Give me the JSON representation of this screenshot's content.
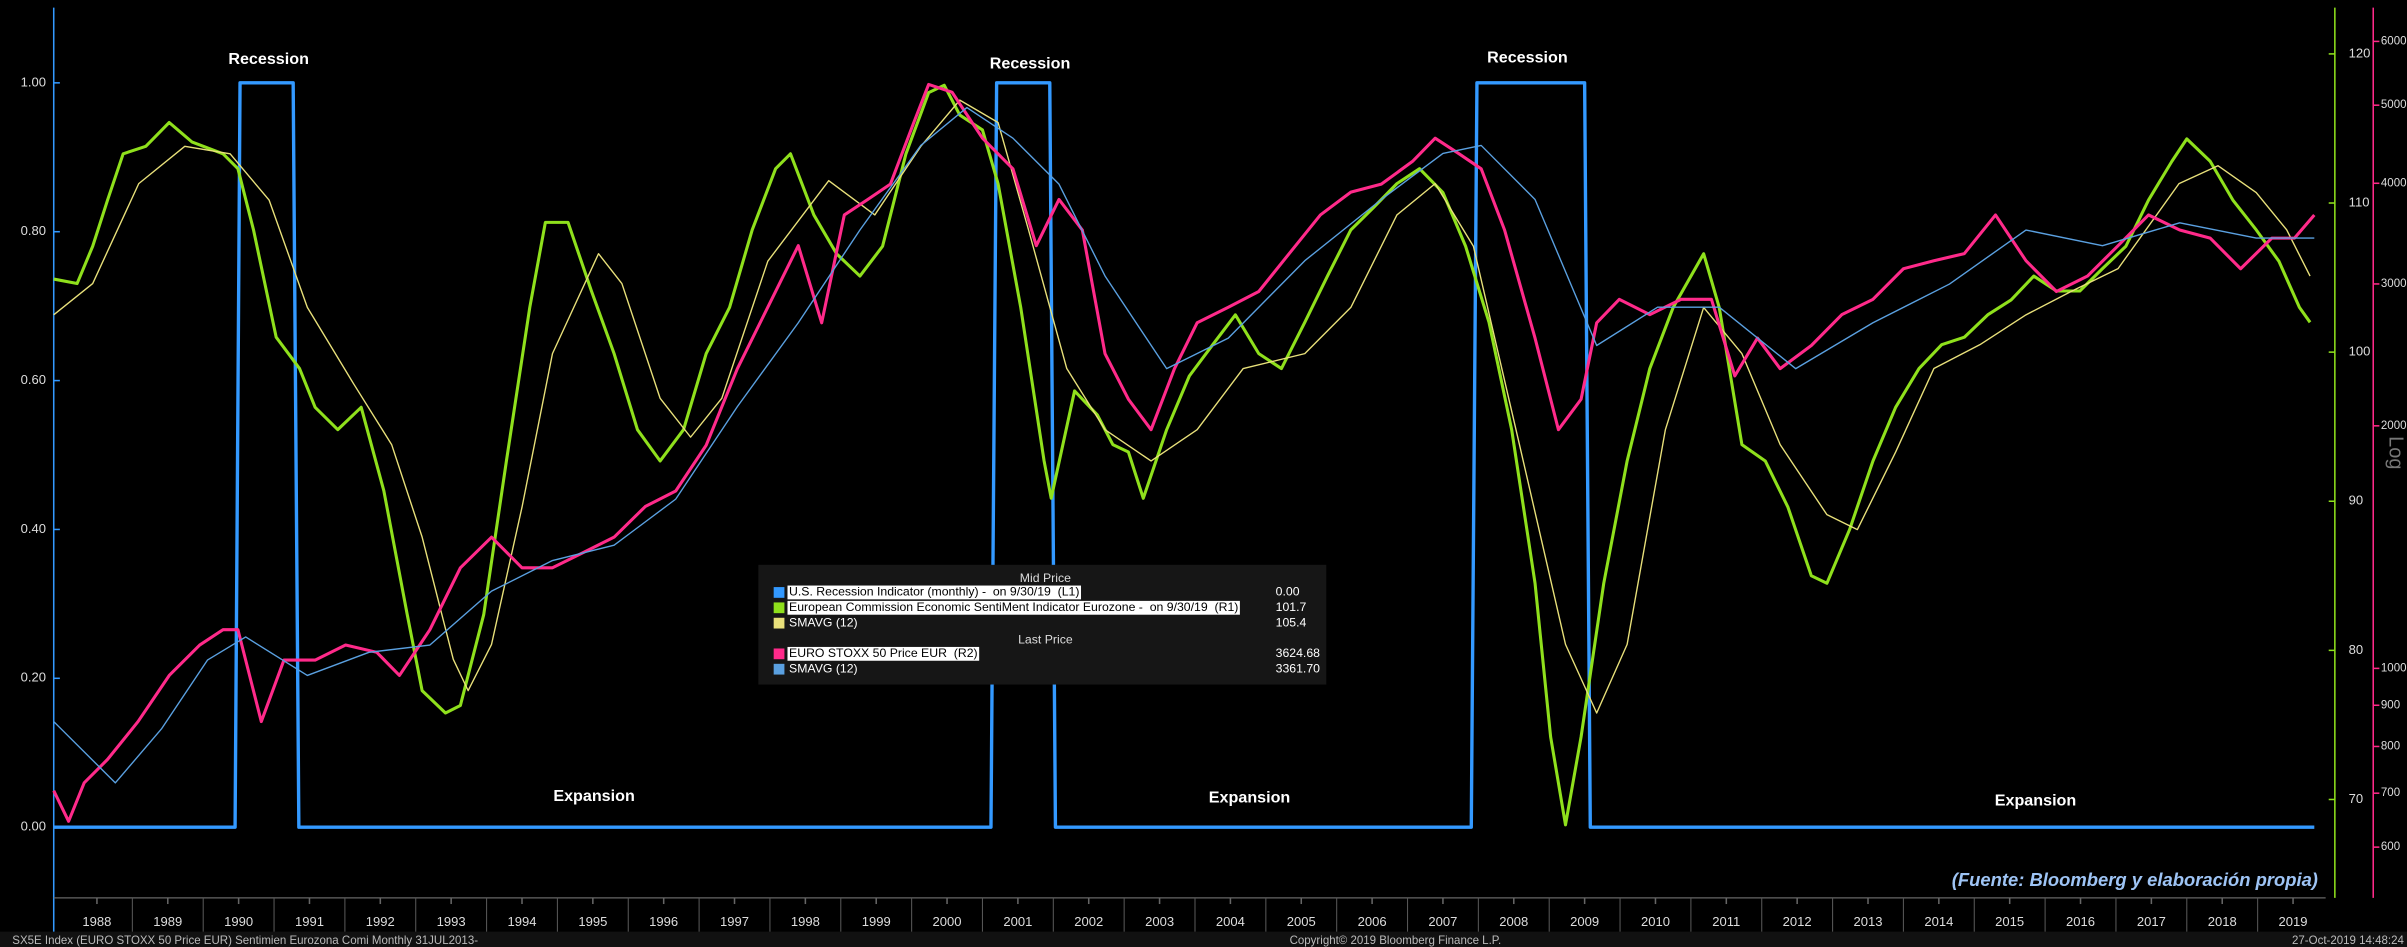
{
  "chart_data": {
    "type": "line",
    "annotations": [
      "Recession",
      "Recession",
      "Recession",
      "Expansion",
      "Expansion",
      "Expansion"
    ],
    "source": "(Fuente: Bloomberg y elaboración propia)",
    "footer": [
      "SX5E Index (EURO STOXX 50 Price EUR) Sentimien Eurozona Comi  Monthly 31JUL2013-",
      "Copyright© 2019 Bloomberg Finance L.P.",
      "27-Oct-2019 14:48:24"
    ],
    "y3_label": "Log",
    "legend": {
      "headers": [
        "Mid Price",
        "Last Price"
      ],
      "values": [
        "0.00",
        "101.7",
        "105.4",
        "3624.68",
        "3361.70"
      ]
    },
    "xlim": [
      1987.89,
      2019.96
    ],
    "xticks": [
      {
        "value": 1988.5,
        "label": "1988"
      },
      {
        "value": 1989.5,
        "label": "1989"
      },
      {
        "value": 1990.5,
        "label": "1990"
      },
      {
        "value": 1991.5,
        "label": "1991"
      },
      {
        "value": 1992.5,
        "label": "1992"
      },
      {
        "value": 1993.5,
        "label": "1993"
      },
      {
        "value": 1994.5,
        "label": "1994"
      },
      {
        "value": 1995.5,
        "label": "1995"
      },
      {
        "value": 1996.5,
        "label": "1996"
      },
      {
        "value": 1997.5,
        "label": "1997"
      },
      {
        "value": 1998.5,
        "label": "1998"
      },
      {
        "value": 1999.5,
        "label": "1999"
      },
      {
        "value": 2000.5,
        "label": "2000"
      },
      {
        "value": 2001.5,
        "label": "2001"
      },
      {
        "value": 2002.5,
        "label": "2002"
      },
      {
        "value": 2003.5,
        "label": "2003"
      },
      {
        "value": 2004.5,
        "label": "2004"
      },
      {
        "value": 2005.5,
        "label": "2005"
      },
      {
        "value": 2006.5,
        "label": "2006"
      },
      {
        "value": 2007.5,
        "label": "2007"
      },
      {
        "value": 2008.5,
        "label": "2008"
      },
      {
        "value": 2009.5,
        "label": "2009"
      },
      {
        "value": 2010.5,
        "label": "2010"
      },
      {
        "value": 2011.5,
        "label": "2011"
      },
      {
        "value": 2012.5,
        "label": "2012"
      },
      {
        "value": 2013.5,
        "label": "2013"
      },
      {
        "value": 2014.5,
        "label": "2014"
      },
      {
        "value": 2015.5,
        "label": "2015"
      },
      {
        "value": 2016.5,
        "label": "2016"
      },
      {
        "value": 2017.5,
        "label": "2017"
      },
      {
        "value": 2018.5,
        "label": "2018"
      },
      {
        "value": 2019.5,
        "label": "2019"
      }
    ],
    "ylim": [
      -0.095,
      1.101
    ],
    "yticks": [
      {
        "value": 0,
        "label": "0.00"
      },
      {
        "value": 0.2,
        "label": "0.20"
      },
      {
        "value": 0.4,
        "label": "0.40"
      },
      {
        "value": 0.6,
        "label": "0.60"
      },
      {
        "value": 0.8,
        "label": "0.80"
      },
      {
        "value": 1,
        "label": "1.00"
      }
    ],
    "y2lim": [
      63.4,
      123.1
    ],
    "y2ticks": [
      70,
      80,
      90,
      100,
      110,
      120
    ],
    "y2color": "#8fe01c",
    "y3lim": [
      519,
      6607
    ],
    "y3log": true,
    "y3ticks": [
      600,
      700,
      800,
      900,
      1000,
      2000,
      3000,
      4000,
      5000,
      6000
    ],
    "y3color": "#ff2a8a",
    "series": [
      {
        "name": "U.S. Recession Indicator (monthly) -  on 9/30/19  (L1)",
        "color": "#3399ff",
        "axis": "y",
        "width": 2.2,
        "x": [
          1987.89,
          1990.45,
          1990.52,
          1991.27,
          1991.35,
          2001.12,
          2001.2,
          2001.95,
          2002.03,
          2007.9,
          2007.98,
          2009.5,
          2009.58,
          2019.8
        ],
        "values": [
          0,
          0,
          1,
          1,
          0,
          0,
          1,
          1,
          0,
          0,
          1,
          1,
          0,
          0
        ]
      },
      {
        "name": "European Commission Economic SentiMent Indicator Eurozone -  on 9/30/19  (R1)",
        "color": "#8fe01c",
        "axis": "y2",
        "width": 2,
        "x": [
          1987.89,
          1988.22,
          1988.44,
          1988.65,
          1988.87,
          1989.19,
          1989.52,
          1989.84,
          1990.28,
          1990.49,
          1990.71,
          1991.03,
          1991.36,
          1991.58,
          1991.9,
          1992.23,
          1992.55,
          1992.88,
          1993.09,
          1993.42,
          1993.63,
          1993.96,
          1994.28,
          1994.61,
          1994.83,
          1995.15,
          1995.48,
          1995.8,
          1996.13,
          1996.45,
          1996.78,
          1997.1,
          1997.43,
          1997.75,
          1998.08,
          1998.29,
          1998.62,
          1998.94,
          1999.27,
          1999.59,
          1999.92,
          2000.24,
          2000.46,
          2000.68,
          2001.0,
          2001.22,
          2001.54,
          2001.87,
          2001.97,
          2002.3,
          2002.62,
          2002.84,
          2003.06,
          2003.27,
          2003.6,
          2003.92,
          2004.25,
          2004.57,
          2004.9,
          2005.22,
          2005.55,
          2005.87,
          2006.2,
          2006.52,
          2006.85,
          2007.17,
          2007.5,
          2007.82,
          2008.15,
          2008.47,
          2008.8,
          2009.02,
          2009.23,
          2009.45,
          2009.77,
          2010.1,
          2010.42,
          2010.75,
          2011.18,
          2011.4,
          2011.72,
          2012.05,
          2012.37,
          2012.7,
          2012.92,
          2013.24,
          2013.57,
          2013.89,
          2014.22,
          2014.54,
          2014.86,
          2015.19,
          2015.52,
          2015.84,
          2016.16,
          2016.49,
          2016.81,
          2017.14,
          2017.46,
          2017.79,
          2018.0,
          2018.33,
          2018.65,
          2018.98,
          2019.3,
          2019.59,
          2019.74
        ],
        "values": [
          104.9,
          104.6,
          107.1,
          110.2,
          113.3,
          113.8,
          115.4,
          114.1,
          113.3,
          112.3,
          108.2,
          101.0,
          98.9,
          96.3,
          94.8,
          96.3,
          90.7,
          82.4,
          77.3,
          75.8,
          76.3,
          82.4,
          92.7,
          103.0,
          108.7,
          108.7,
          104.1,
          99.9,
          94.8,
          92.7,
          94.8,
          99.9,
          103.0,
          108.2,
          112.3,
          113.3,
          109.2,
          106.6,
          105.1,
          107.1,
          113.3,
          117.4,
          117.9,
          115.9,
          114.9,
          111.3,
          103.0,
          92.7,
          90.2,
          97.4,
          95.8,
          93.8,
          93.3,
          90.2,
          94.8,
          98.4,
          100.5,
          102.5,
          99.9,
          98.9,
          102.0,
          105.1,
          108.2,
          109.7,
          111.3,
          112.3,
          110.7,
          107.1,
          102.0,
          94.8,
          84.5,
          74.2,
          68.3,
          74.2,
          84.5,
          92.7,
          98.9,
          103.0,
          106.6,
          103.0,
          93.8,
          92.7,
          89.6,
          85.0,
          84.5,
          88.1,
          92.7,
          96.3,
          98.9,
          100.5,
          101.0,
          102.5,
          103.5,
          105.1,
          104.1,
          104.1,
          105.6,
          107.1,
          110.2,
          112.8,
          114.3,
          112.8,
          110.2,
          108.2,
          106.1,
          103.0,
          102.0
        ]
      },
      {
        "name": "SMAVG (12)",
        "color": "#e8e07a",
        "axis": "y2",
        "width": 0.9,
        "x": [
          1987.89,
          1988.44,
          1989.09,
          1989.74,
          1990.38,
          1990.93,
          1991.47,
          1992.12,
          1992.66,
          1993.09,
          1993.53,
          1993.74,
          1994.07,
          1994.5,
          1994.93,
          1995.58,
          1995.91,
          1996.45,
          1996.88,
          1997.32,
          1997.97,
          1998.83,
          1999.48,
          2000.13,
          2000.68,
          2001.22,
          2001.65,
          2002.19,
          2002.73,
          2003.38,
          2004.03,
          2004.68,
          2005.55,
          2006.2,
          2006.85,
          2007.39,
          2007.93,
          2008.58,
          2009.23,
          2009.67,
          2010.1,
          2010.64,
          2011.18,
          2011.72,
          2012.26,
          2012.92,
          2013.35,
          2013.89,
          2014.43,
          2015.08,
          2015.73,
          2016.38,
          2017.03,
          2017.89,
          2018.44,
          2018.98,
          2019.41,
          2019.74
        ],
        "values": [
          102.5,
          104.6,
          111.3,
          113.8,
          113.3,
          110.2,
          103.0,
          97.9,
          93.8,
          87.6,
          79.4,
          77.3,
          80.4,
          89.6,
          99.9,
          106.6,
          104.6,
          96.9,
          94.3,
          96.9,
          106.1,
          111.5,
          109.2,
          113.8,
          116.9,
          115.4,
          108.2,
          98.9,
          94.8,
          92.7,
          94.8,
          98.9,
          99.9,
          103.0,
          109.2,
          111.3,
          107.1,
          93.8,
          80.4,
          75.8,
          80.4,
          94.8,
          103.0,
          99.9,
          93.8,
          89.1,
          88.1,
          93.3,
          98.9,
          100.5,
          102.5,
          104.1,
          105.6,
          111.3,
          112.5,
          110.7,
          108.2,
          105.1
        ]
      },
      {
        "name": "EURO STOXX 50 Price EUR  (R2)",
        "color": "#ff2a8a",
        "axis": "y3",
        "width": 2,
        "x": [
          1987.89,
          1988.1,
          1988.32,
          1988.65,
          1989.08,
          1989.52,
          1989.95,
          1990.28,
          1990.49,
          1990.82,
          1991.14,
          1991.58,
          1992.01,
          1992.45,
          1992.77,
          1993.2,
          1993.63,
          1994.07,
          1994.5,
          1994.93,
          1995.37,
          1995.8,
          1996.24,
          1996.67,
          1997.1,
          1997.54,
          1997.97,
          1998.4,
          1998.73,
          1999.05,
          1999.38,
          1999.7,
          2000.03,
          2000.24,
          2000.57,
          2001.0,
          2001.43,
          2001.76,
          2002.08,
          2002.41,
          2002.73,
          2003.06,
          2003.38,
          2003.71,
          2004.03,
          2004.47,
          2004.9,
          2005.33,
          2005.77,
          2006.2,
          2006.63,
          2007.07,
          2007.39,
          2007.72,
          2008.04,
          2008.37,
          2008.8,
          2009.13,
          2009.45,
          2009.67,
          2009.99,
          2010.42,
          2010.86,
          2011.29,
          2011.62,
          2011.94,
          2012.26,
          2012.7,
          2013.13,
          2013.57,
          2014.0,
          2014.43,
          2014.86,
          2015.3,
          2015.73,
          2016.16,
          2016.6,
          2017.03,
          2017.46,
          2017.9,
          2018.33,
          2018.76,
          2019.2,
          2019.52,
          2019.8
        ],
        "values": [
          705,
          646,
          721,
          771,
          859,
          980,
          1069,
          1117,
          1117,
          859,
          1024,
          1024,
          1069,
          1047,
          980,
          1117,
          1333,
          1455,
          1333,
          1333,
          1393,
          1455,
          1588,
          1660,
          1892,
          2355,
          2807,
          3347,
          2685,
          3654,
          3819,
          3990,
          4757,
          5305,
          5190,
          4550,
          4169,
          3347,
          3819,
          3500,
          2458,
          2158,
          1978,
          2355,
          2685,
          2807,
          2936,
          3272,
          3654,
          3900,
          3990,
          4258,
          4550,
          4356,
          4169,
          3500,
          2570,
          1978,
          2158,
          2685,
          2871,
          2748,
          2871,
          2871,
          2307,
          2570,
          2355,
          2516,
          2748,
          2871,
          3133,
          3206,
          3272,
          3654,
          3206,
          2936,
          3069,
          3347,
          3654,
          3500,
          3420,
          3133,
          3420,
          3420,
          3654
        ]
      },
      {
        "name": "SMAVG (12)",
        "color": "#5aa0e0",
        "axis": "y3",
        "width": 0.9,
        "x": [
          1987.89,
          1988.76,
          1989.41,
          1990.06,
          1990.6,
          1991.47,
          1992.34,
          1993.2,
          1994.07,
          1994.93,
          1995.8,
          1996.67,
          1997.54,
          1998.4,
          1999.27,
          2000.13,
          2000.78,
          2001.43,
          2002.08,
          2002.73,
          2003.6,
          2004.47,
          2005.55,
          2006.63,
          2007.5,
          2008.04,
          2008.8,
          2009.67,
          2010.53,
          2011.4,
          2012.48,
          2013.57,
          2014.65,
          2015.73,
          2016.81,
          2017.9,
          2018.98,
          2019.8
        ],
        "values": [
          859,
          721,
          841,
          1024,
          1094,
          980,
          1047,
          1069,
          1247,
          1361,
          1422,
          1622,
          2113,
          2685,
          3500,
          4457,
          4966,
          4550,
          3990,
          3069,
          2355,
          2570,
          3206,
          3819,
          4356,
          4457,
          3819,
          2516,
          2807,
          2807,
          2355,
          2685,
          2999,
          3500,
          3347,
          3573,
          3420,
          3420
        ]
      }
    ]
  }
}
